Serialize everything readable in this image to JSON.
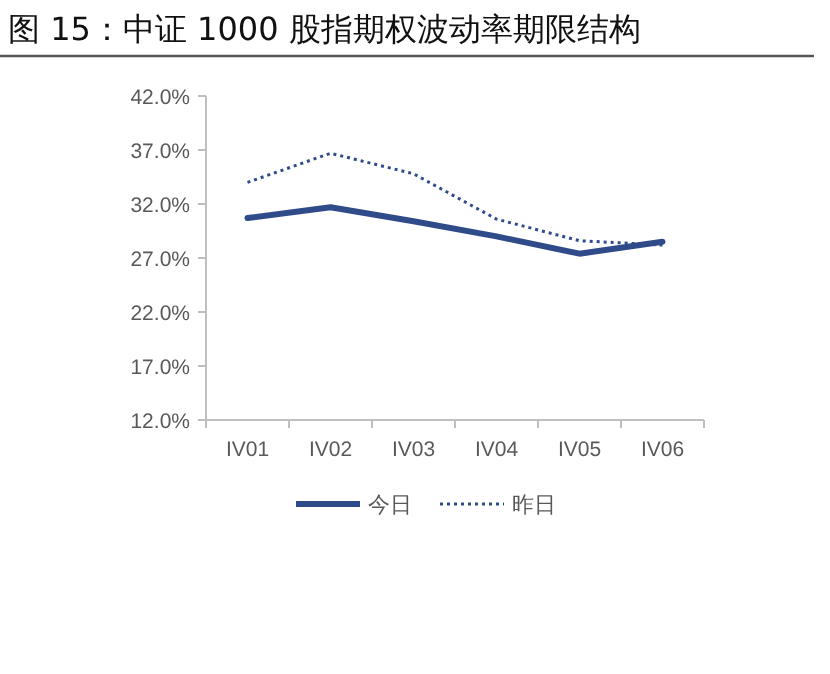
{
  "chart_data": {
    "type": "line",
    "title": "图 15：中证 1000 股指期权波动率期限结构",
    "categories": [
      "IV01",
      "IV02",
      "IV03",
      "IV04",
      "IV05",
      "IV06"
    ],
    "series": [
      {
        "name": "今日",
        "color": "#2f4b8a",
        "line_style": "solid",
        "values": [
          30.7,
          31.7,
          30.4,
          29.0,
          27.4,
          28.5
        ]
      },
      {
        "name": "昨日",
        "color": "#2f4b8a",
        "line_style": "dotted",
        "values": [
          34.0,
          36.7,
          34.8,
          30.6,
          28.6,
          28.2
        ]
      }
    ],
    "ylim": [
      12,
      42
    ],
    "yticks": [
      {
        "value": 12,
        "label": "12.0%"
      },
      {
        "value": 17,
        "label": "17.0%"
      },
      {
        "value": 22,
        "label": "22.0%"
      },
      {
        "value": 27,
        "label": "27.0%"
      },
      {
        "value": 32,
        "label": "32.0%"
      },
      {
        "value": 37,
        "label": "37.0%"
      },
      {
        "value": 42,
        "label": "42.0%"
      }
    ],
    "grid": false,
    "legend": "bottom",
    "marker": "none"
  }
}
